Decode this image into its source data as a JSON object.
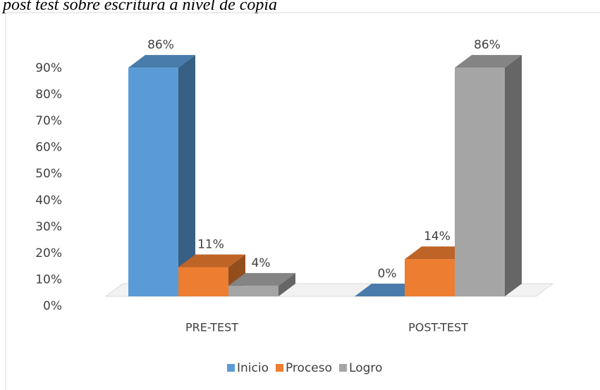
{
  "chart_data": {
    "type": "bar3d",
    "title": "post test sobre escritura a nivel de copia",
    "categories": [
      "PRE-TEST",
      "POST-TEST"
    ],
    "series": [
      {
        "name": "Inicio",
        "color": "#5b9bd5",
        "values": [
          86,
          0
        ],
        "value_labels": [
          "86%",
          "0%"
        ]
      },
      {
        "name": "Proceso",
        "color": "#ed7d31",
        "values": [
          11,
          14
        ],
        "value_labels": [
          "11%",
          "14%"
        ]
      },
      {
        "name": "Logro",
        "color": "#a5a5a5",
        "values": [
          4,
          86
        ],
        "value_labels": [
          "4%",
          "86%"
        ]
      }
    ],
    "ylim": [
      0,
      90
    ],
    "yticks": [
      {
        "value": 0,
        "label": "0%"
      },
      {
        "value": 10,
        "label": "10%"
      },
      {
        "value": 20,
        "label": "20%"
      },
      {
        "value": 30,
        "label": "30%"
      },
      {
        "value": 40,
        "label": "40%"
      },
      {
        "value": 50,
        "label": "50%"
      },
      {
        "value": 60,
        "label": "60%"
      },
      {
        "value": 70,
        "label": "70%"
      },
      {
        "value": 80,
        "label": "80%"
      },
      {
        "value": 90,
        "label": "90%"
      }
    ],
    "legend": "bottom"
  }
}
